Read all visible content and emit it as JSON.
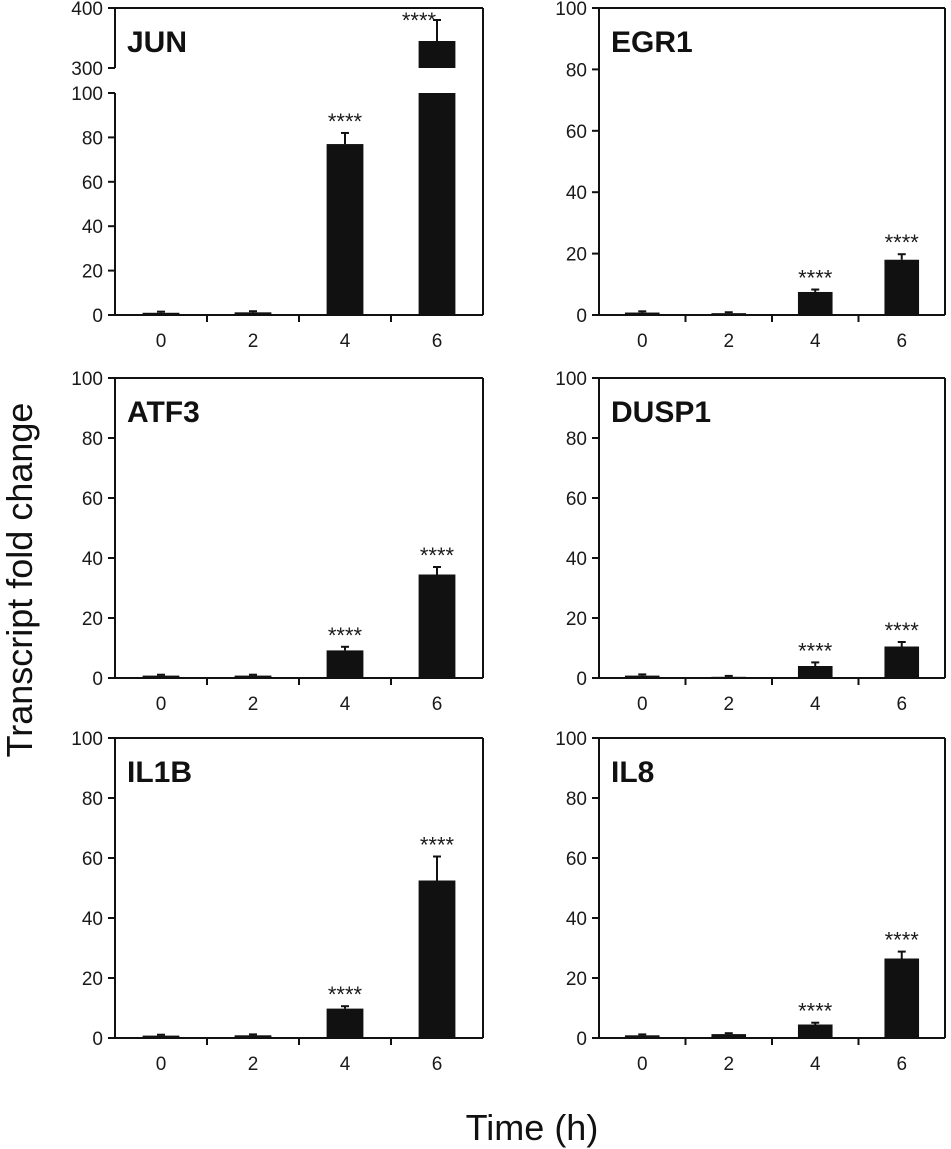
{
  "figure": {
    "ylabel": "Transcript fold change",
    "xlabel": "Time (h)"
  },
  "colors": {
    "bar": "#111111",
    "axis": "#111111",
    "text": "#1a1a1a"
  },
  "chart_data": [
    {
      "type": "bar",
      "title": "JUN",
      "categories": [
        "0",
        "2",
        "4",
        "6"
      ],
      "values": [
        1,
        1.2,
        77,
        345
      ],
      "errors": [
        0.5,
        0.5,
        5,
        35
      ],
      "significance": [
        "",
        "",
        "****",
        "****"
      ],
      "ylim": [
        0,
        400
      ],
      "axis_break": {
        "lower_range": [
          0,
          100
        ],
        "upper_range": [
          300,
          400
        ]
      },
      "yticks": [
        0,
        20,
        40,
        60,
        80,
        100,
        300,
        400
      ],
      "xlabel": "Time (h)",
      "ylabel": "Transcript fold change"
    },
    {
      "type": "bar",
      "title": "EGR1",
      "categories": [
        "0",
        "2",
        "4",
        "6"
      ],
      "values": [
        0.8,
        0.6,
        7.5,
        18
      ],
      "errors": [
        0.4,
        0.3,
        0.8,
        1.8
      ],
      "significance": [
        "",
        "",
        "****",
        "****"
      ],
      "ylim": [
        0,
        100
      ],
      "yticks": [
        0,
        20,
        40,
        60,
        80,
        100
      ],
      "xlabel": "Time (h)",
      "ylabel": "Transcript fold change"
    },
    {
      "type": "bar",
      "title": "ATF3",
      "categories": [
        "0",
        "2",
        "4",
        "6"
      ],
      "values": [
        0.8,
        0.8,
        9.2,
        34.5
      ],
      "errors": [
        0.3,
        0.3,
        1.2,
        2.5
      ],
      "significance": [
        "",
        "",
        "****",
        "****"
      ],
      "ylim": [
        0,
        100
      ],
      "yticks": [
        0,
        20,
        40,
        60,
        80,
        100
      ],
      "xlabel": "Time (h)",
      "ylabel": "Transcript fold change"
    },
    {
      "type": "bar",
      "title": "DUSP1",
      "categories": [
        "0",
        "2",
        "4",
        "6"
      ],
      "values": [
        0.8,
        0.4,
        4,
        10.5
      ],
      "errors": [
        0.4,
        0.3,
        1.2,
        1.5
      ],
      "significance": [
        "",
        "",
        "****",
        "****"
      ],
      "ylim": [
        0,
        100
      ],
      "yticks": [
        0,
        20,
        40,
        60,
        80,
        100
      ],
      "xlabel": "Time (h)",
      "ylabel": "Transcript fold change"
    },
    {
      "type": "bar",
      "title": "IL1B",
      "categories": [
        "0",
        "2",
        "4",
        "6"
      ],
      "values": [
        0.8,
        0.9,
        9.8,
        52.5
      ],
      "errors": [
        0.3,
        0.3,
        0.8,
        8
      ],
      "significance": [
        "",
        "",
        "****",
        "****"
      ],
      "ylim": [
        0,
        100
      ],
      "yticks": [
        0,
        20,
        40,
        60,
        80,
        100
      ],
      "xlabel": "Time (h)",
      "ylabel": "Transcript fold change"
    },
    {
      "type": "bar",
      "title": "IL8",
      "categories": [
        "0",
        "2",
        "4",
        "6"
      ],
      "values": [
        0.9,
        1.3,
        4.5,
        26.5
      ],
      "errors": [
        0.3,
        0.3,
        0.6,
        2.3
      ],
      "significance": [
        "",
        "",
        "****",
        "****"
      ],
      "ylim": [
        0,
        100
      ],
      "yticks": [
        0,
        20,
        40,
        60,
        80,
        100
      ],
      "xlabel": "Time (h)",
      "ylabel": "Transcript fold change"
    }
  ]
}
